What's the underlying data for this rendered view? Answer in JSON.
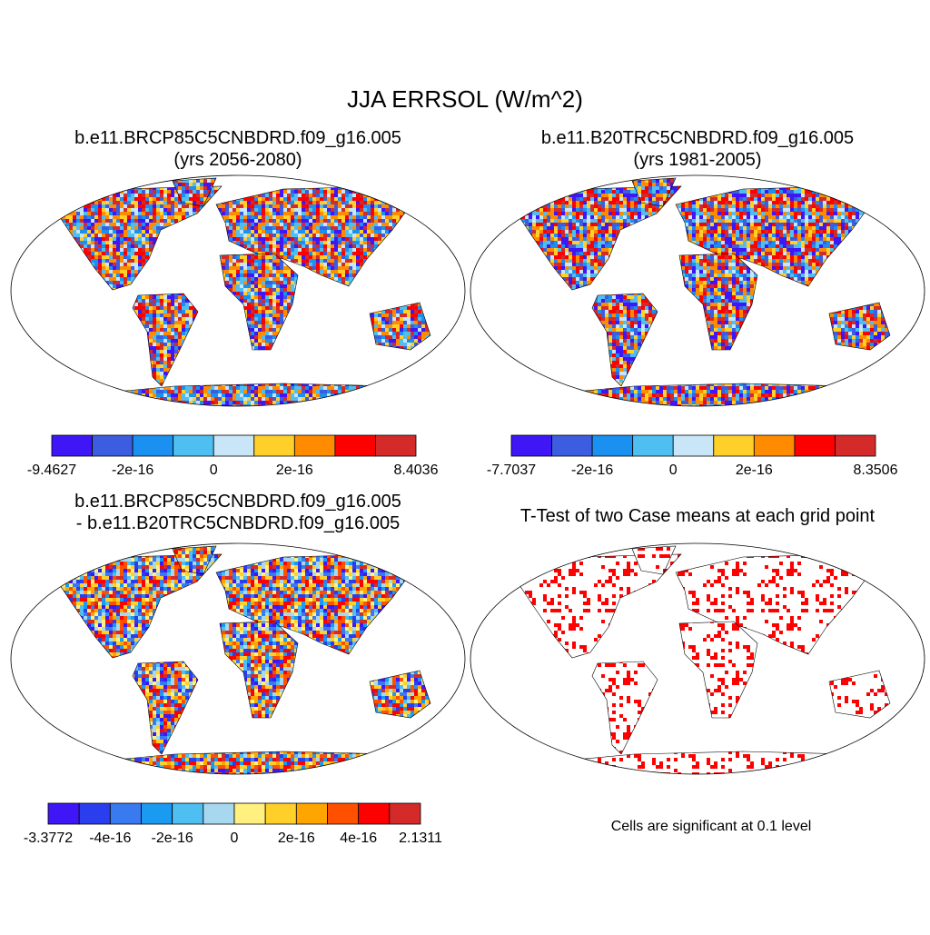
{
  "title": "JJA ERRSOL (W/m^2)",
  "panels": [
    {
      "title": [
        "b.e11.BRCP85C5CNBDRD.f09_g16.005",
        "(yrs 2056-2080)"
      ],
      "colorbar": {
        "colors": [
          "#3f16f5",
          "#3d5de0",
          "#1a90f0",
          "#4fbef0",
          "#c8e6f8",
          "#ffd02a",
          "#ff8c00",
          "#ff0000",
          "#d42a2a"
        ],
        "labels": [
          "-9.4627",
          "-2e-16",
          "0",
          "2e-16",
          "8.4036"
        ]
      }
    },
    {
      "title": [
        "b.e11.B20TRC5CNBDRD.f09_g16.005",
        "(yrs 1981-2005)"
      ],
      "colorbar": {
        "colors": [
          "#3f16f5",
          "#3d5de0",
          "#1a90f0",
          "#4fbef0",
          "#c8e6f8",
          "#ffd02a",
          "#ff8c00",
          "#ff0000",
          "#d42a2a"
        ],
        "labels": [
          "-7.7037",
          "-2e-16",
          "0",
          "2e-16",
          "8.3506"
        ]
      }
    },
    {
      "title": [
        "b.e11.BRCP85C5CNBDRD.f09_g16.005",
        "- b.e11.B20TRC5CNBDRD.f09_g16.005"
      ],
      "colorbar": {
        "colors": [
          "#3f16f5",
          "#2a3ef0",
          "#3a7af0",
          "#1a9af0",
          "#4fbef0",
          "#a8d8f0",
          "#fff080",
          "#ffd02a",
          "#ffa500",
          "#ff5000",
          "#ff0000",
          "#d42a2a"
        ],
        "labels": [
          "-3.3772",
          "-4e-16",
          "-2e-16",
          "0",
          "2e-16",
          "4e-16",
          "2.1311"
        ]
      }
    },
    {
      "title": [
        "T-Test of two Case means at each grid point"
      ],
      "note": "Cells are significant at 0.1 level"
    }
  ]
}
